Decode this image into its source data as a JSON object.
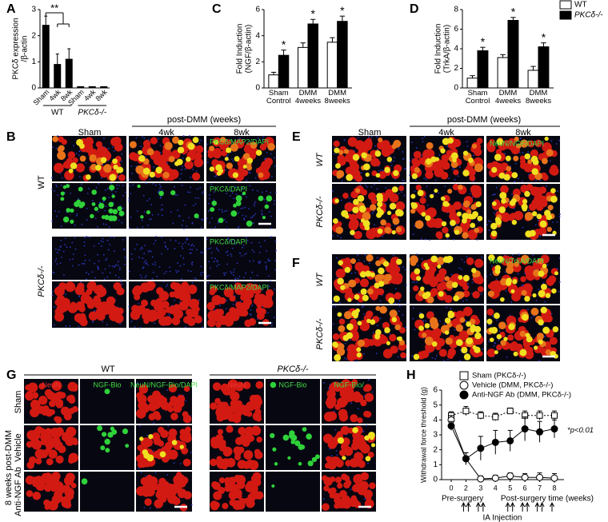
{
  "chart_data": [
    {
      "type": "bar",
      "panel": "A",
      "y_label": [
        "PKCδ expression",
        "/β-actin"
      ],
      "categories": [
        "Sham",
        "4wk",
        "8wk",
        "Sham",
        "4wk",
        "8wk"
      ],
      "groups": [
        "WT",
        "PKCδ-/-"
      ],
      "values": [
        2.4,
        0.9,
        1.1,
        0.05,
        0.05,
        0.05
      ],
      "errors": [
        0.35,
        0.4,
        0.4,
        0,
        0,
        0
      ],
      "color": "#000000",
      "ylim": [
        0,
        3
      ],
      "yticks": [
        0,
        1,
        2,
        3
      ],
      "annotation": "**"
    },
    {
      "type": "bar",
      "panel": "C",
      "y_label": [
        "Fold Induction",
        "(NGF/β-actin)"
      ],
      "categories": [
        "Sham Control",
        "DMM 4weeks",
        "DMM 8weeks"
      ],
      "series": [
        {
          "color": "#ffffff",
          "values": [
            1.0,
            3.1,
            3.5
          ],
          "errors": [
            0.2,
            0.35,
            0.35
          ]
        },
        {
          "color": "#000000",
          "values": [
            2.5,
            4.9,
            5.1
          ],
          "errors": [
            0.4,
            0.35,
            0.4
          ]
        }
      ],
      "significance": [
        "*",
        "*",
        "*"
      ],
      "ylim": [
        0,
        6
      ],
      "yticks": [
        0,
        2,
        4,
        6
      ]
    },
    {
      "type": "bar",
      "panel": "D",
      "y_label": [
        "Fold Induction",
        "(TrkA/β-actin)"
      ],
      "categories": [
        "Sham Control",
        "DMM 4weeks",
        "DMM 8weeks"
      ],
      "series": [
        {
          "name": "WT",
          "color": "#ffffff",
          "values": [
            1.0,
            3.1,
            1.8
          ],
          "errors": [
            0.25,
            0.3,
            0.4
          ]
        },
        {
          "name": "PKCδ-/-",
          "color": "#000000",
          "values": [
            3.8,
            6.9,
            4.2
          ],
          "errors": [
            0.35,
            0.3,
            0.4
          ]
        }
      ],
      "significance": [
        "*",
        "*",
        "*"
      ],
      "ylim": [
        0,
        8
      ],
      "yticks": [
        0,
        2,
        4,
        6,
        8
      ]
    },
    {
      "type": "line",
      "panel": "H",
      "y_label": "Withdrawal force threshold (g)",
      "x_label": "Post-surgery time (weeks)",
      "start_label": "Pre-surgery",
      "injection_label": "IA  Injection",
      "note": "*p<0.01",
      "categories": [
        "0",
        "2",
        "3",
        "4",
        "5",
        "6",
        "7",
        "8"
      ],
      "series": [
        {
          "name": "Sham (PKCδ-/-)",
          "marker": "square",
          "fill": "#ffffff",
          "line_style": "dotted",
          "color": "#000000",
          "values": [
            4.3,
            4.6,
            4.3,
            4.2,
            4.6,
            4.3,
            4.3,
            4.3
          ],
          "errors": [
            0.25,
            0.3,
            0.25,
            0.25,
            0.2,
            0.3,
            0.3,
            0.3
          ]
        },
        {
          "name": "Vehicle (DMM, PKCδ-/-)",
          "marker": "circle",
          "fill": "#ffffff",
          "line_style": "solid",
          "color": "#000000",
          "values": [
            4.0,
            1.4,
            0.05,
            0.1,
            0.25,
            0.15,
            0.15,
            0.1
          ],
          "errors": [
            0.3,
            0.4,
            0.2,
            0.2,
            0.2,
            0.25,
            0.3,
            0.3
          ]
        },
        {
          "name": "Anti-NGF Ab (DMM, PKCδ-/-)",
          "marker": "circle",
          "fill": "#000000",
          "line_style": "solid",
          "color": "#000000",
          "values": [
            3.6,
            1.4,
            2.1,
            2.5,
            2.6,
            3.4,
            3.2,
            3.4
          ],
          "errors": [
            0.3,
            0.4,
            0.8,
            0.8,
            0.7,
            0.8,
            0.7,
            0.6
          ]
        }
      ],
      "ylim": [
        0,
        6
      ],
      "yticks": [
        0,
        1,
        2,
        3,
        4,
        5,
        6
      ]
    }
  ],
  "image_panels": {
    "B": {
      "panel": "B",
      "header": "post-DMM (weeks)",
      "columns": [
        "Sham",
        "4wk",
        "8wk"
      ],
      "rows": [
        "WT",
        "PKCδ-/-"
      ],
      "stains": [
        "PKCδ/MAP2/DAPI",
        "PKCδ/DAPI",
        "PKCδ/DAPI",
        "PKCδ/MAP2/DAPI"
      ]
    },
    "E": {
      "panel": "E",
      "header": "post-DMM (weeks)",
      "columns": [
        "Sham",
        "4wk",
        "8wk"
      ],
      "rows": [
        "WT",
        "PKCδ-/-"
      ],
      "stain": "NeuN/NGF/DAPI"
    },
    "F": {
      "panel": "F",
      "rows": [
        "WT",
        "PKCδ-/-"
      ],
      "stain": "NeuN/TrkA/DAPI"
    },
    "G": {
      "panel": "G",
      "groups": [
        "WT",
        "PKCδ-/-"
      ],
      "columns": [
        "NeuN",
        "NGF-Bio",
        "NeuN/NGF-Bio/DAPI",
        "NeuN",
        "NGF-Bio",
        "NGF-Bio/"
      ],
      "side_label": "8 weeks post-DMM",
      "rows": [
        "Sham",
        "Vehicle",
        "Anti-NGF Ab"
      ]
    }
  }
}
